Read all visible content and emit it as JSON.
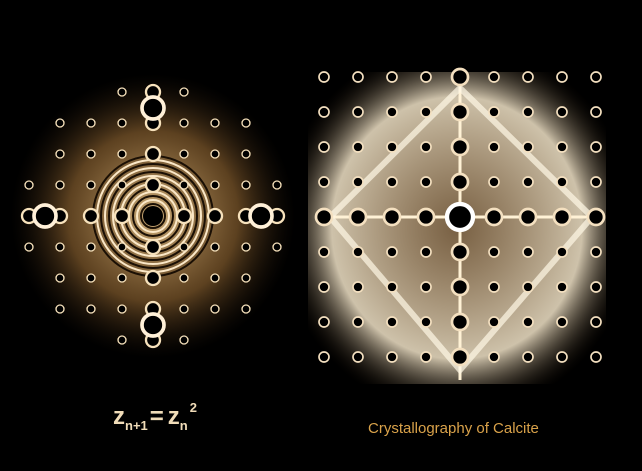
{
  "left_caption": {
    "z1": "z",
    "sub1": "n+1",
    "equals": "=",
    "z2": "z",
    "sub2": "n",
    "sup": "2"
  },
  "right_caption": "Crystallography of Calcite"
}
